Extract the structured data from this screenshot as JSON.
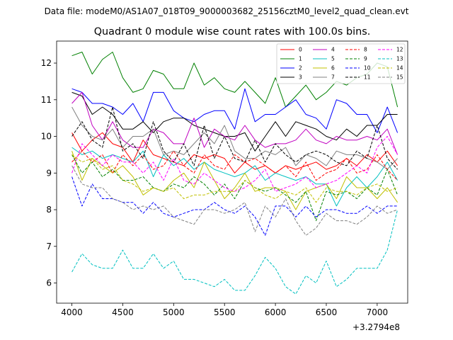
{
  "suptitle": "Data file: modeM0/AS1A07_018T09_9000003682_25156cztM0_level2_quad_clean.evt",
  "chart_data": {
    "type": "line",
    "title": "Quadrant 0 module wise count rates with 100.0s bins.",
    "xlabel": "",
    "ylabel": "",
    "x_offset_label": "+3.2794e8",
    "xlim": [
      3850,
      7300
    ],
    "ylim": [
      5.45,
      12.6
    ],
    "xticks": [
      4000,
      4500,
      5000,
      5500,
      6000,
      6500,
      7000
    ],
    "yticks": [
      6,
      7,
      8,
      9,
      10,
      11,
      12
    ],
    "x": [
      4000,
      4100,
      4200,
      4300,
      4400,
      4500,
      4600,
      4700,
      4800,
      4900,
      5000,
      5100,
      5200,
      5300,
      5400,
      5500,
      5600,
      5700,
      5800,
      5900,
      6000,
      6100,
      6200,
      6300,
      6400,
      6500,
      6600,
      6700,
      6800,
      6900,
      7000,
      7100,
      7200
    ],
    "legend_position": "upper-right",
    "legend_columns": 4,
    "series": [
      {
        "name": "0",
        "color": "#ff0000",
        "dash": "solid",
        "values": [
          10.1,
          9.6,
          9.9,
          10.1,
          9.8,
          9.7,
          9.3,
          9.9,
          9.5,
          9.4,
          9.3,
          9.2,
          9.5,
          9.4,
          9.5,
          9.4,
          9.0,
          9.3,
          9.1,
          9.2,
          9.0,
          9.2,
          9.1,
          9.2,
          9.3,
          9.1,
          9.2,
          9.4,
          9.2,
          9.5,
          9.3,
          9.6,
          9.2
        ]
      },
      {
        "name": "1",
        "color": "#008000",
        "dash": "solid",
        "values": [
          12.2,
          12.3,
          11.7,
          12.1,
          12.3,
          11.6,
          11.2,
          11.3,
          11.8,
          11.7,
          11.3,
          11.3,
          12.0,
          11.4,
          11.6,
          11.3,
          11.2,
          11.5,
          11.2,
          10.9,
          11.6,
          10.8,
          11.1,
          11.4,
          11.0,
          11.2,
          11.5,
          11.4,
          11.6,
          11.7,
          12.0,
          11.9,
          10.8
        ]
      },
      {
        "name": "2",
        "color": "#0000ff",
        "dash": "solid",
        "values": [
          11.3,
          11.2,
          10.9,
          10.9,
          10.8,
          10.6,
          10.9,
          10.4,
          11.2,
          11.2,
          10.7,
          10.5,
          10.4,
          10.6,
          10.7,
          10.7,
          10.2,
          11.3,
          10.4,
          10.6,
          10.6,
          10.8,
          11.0,
          10.6,
          10.5,
          10.2,
          11.0,
          10.9,
          10.6,
          10.6,
          10.1,
          10.8,
          10.1
        ]
      },
      {
        "name": "3",
        "color": "#000000",
        "dash": "solid",
        "values": [
          11.2,
          11.1,
          10.6,
          10.8,
          10.6,
          10.2,
          10.2,
          10.4,
          10.1,
          10.4,
          10.5,
          10.5,
          10.3,
          10.2,
          10.1,
          10.0,
          10.0,
          10.1,
          9.6,
          10.0,
          10.4,
          10.0,
          10.4,
          10.3,
          10.2,
          10.0,
          9.9,
          10.2,
          10.0,
          10.3,
          10.3,
          10.6,
          10.6
        ]
      },
      {
        "name": "4",
        "color": "#c000c0",
        "dash": "solid",
        "values": [
          10.9,
          11.2,
          10.3,
          9.9,
          10.4,
          9.9,
          9.7,
          9.7,
          10.2,
          10.1,
          9.8,
          9.8,
          10.5,
          9.7,
          10.2,
          10.0,
          9.9,
          10.3,
          9.9,
          9.7,
          9.8,
          9.8,
          9.9,
          10.2,
          9.9,
          9.8,
          10.0,
          9.9,
          9.9,
          10.0,
          9.9,
          10.2,
          9.5
        ]
      },
      {
        "name": "5",
        "color": "#00c0c0",
        "dash": "solid",
        "values": [
          9.7,
          9.5,
          9.6,
          9.4,
          9.5,
          9.4,
          9.3,
          9.6,
          8.9,
          9.5,
          9.2,
          9.4,
          9.1,
          9.3,
          9.1,
          9.0,
          8.9,
          9.0,
          9.2,
          8.8,
          9.0,
          8.9,
          8.8,
          8.9,
          8.7,
          8.7,
          8.1,
          8.6,
          8.9,
          8.6,
          8.9,
          9.3,
          8.8
        ]
      },
      {
        "name": "6",
        "color": "#c0c000",
        "dash": "solid",
        "values": [
          9.6,
          8.8,
          9.4,
          9.2,
          9.0,
          9.2,
          8.9,
          8.4,
          8.6,
          8.5,
          8.8,
          9.0,
          8.6,
          9.3,
          8.8,
          8.3,
          8.6,
          9.0,
          8.5,
          8.6,
          8.6,
          8.5,
          8.0,
          8.5,
          8.6,
          8.7,
          8.3,
          8.9,
          8.6,
          8.6,
          8.3,
          8.6,
          8.2
        ]
      },
      {
        "name": "7",
        "color": "#808080",
        "dash": "solid",
        "values": [
          10.8,
          10.3,
          10.0,
          9.9,
          10.2,
          9.7,
          10.0,
          10.0,
          10.2,
          9.5,
          9.6,
          9.5,
          9.8,
          10.1,
          9.8,
          10.3,
          9.6,
          9.4,
          9.4,
          9.6,
          9.5,
          9.7,
          9.2,
          9.5,
          9.4,
          9.2,
          9.6,
          9.5,
          9.5,
          9.4,
          9.3,
          9.1,
          9.4
        ]
      },
      {
        "name": "8",
        "color": "#ff0000",
        "dash": "dashed",
        "values": [
          9.3,
          9.6,
          9.3,
          9.5,
          9.0,
          9.5,
          9.2,
          9.5,
          9.1,
          9.2,
          9.6,
          9.2,
          9.0,
          9.5,
          9.2,
          9.1,
          9.5,
          9.3,
          9.4,
          9.2,
          9.0,
          9.2,
          8.9,
          9.3,
          8.8,
          9.0,
          9.1,
          9.4,
          9.0,
          9.1,
          9.5,
          9.1,
          8.8
        ]
      },
      {
        "name": "9",
        "color": "#008000",
        "dash": "dashed",
        "values": [
          9.5,
          9.0,
          9.3,
          8.9,
          9.1,
          8.8,
          8.8,
          8.9,
          8.6,
          8.5,
          8.7,
          8.6,
          8.9,
          8.7,
          8.4,
          8.7,
          8.3,
          8.8,
          8.6,
          8.5,
          8.6,
          8.4,
          8.2,
          8.5,
          7.7,
          8.5,
          8.4,
          8.5,
          8.3,
          8.6,
          8.4,
          9.1,
          8.4
        ]
      },
      {
        "name": "10",
        "color": "#0000ff",
        "dash": "dashed",
        "values": [
          8.9,
          8.1,
          8.7,
          8.3,
          8.3,
          8.2,
          8.2,
          7.9,
          8.2,
          7.9,
          7.8,
          7.9,
          8.0,
          8.0,
          8.2,
          8.0,
          7.9,
          8.1,
          7.8,
          7.3,
          8.1,
          8.1,
          7.8,
          8.1,
          7.8,
          8.0,
          8.0,
          7.9,
          7.9,
          8.1,
          7.9,
          8.1,
          8.1
        ]
      },
      {
        "name": "11",
        "color": "#000000",
        "dash": "dashed",
        "values": [
          10.0,
          10.4,
          9.9,
          9.7,
          10.8,
          9.6,
          9.8,
          9.4,
          10.4,
          9.6,
          9.3,
          9.8,
          9.2,
          10.3,
          9.4,
          10.0,
          9.4,
          9.3,
          9.9,
          9.3,
          9.8,
          9.5,
          9.3,
          9.5,
          9.6,
          9.5,
          9.3,
          9.2,
          9.6,
          9.4,
          10.3,
          9.4,
          9.1
        ]
      },
      {
        "name": "12",
        "color": "#ff00ff",
        "dash": "dashed",
        "values": [
          9.0,
          9.8,
          9.5,
          9.2,
          9.5,
          9.3,
          9.3,
          9.0,
          9.3,
          8.8,
          9.4,
          8.8,
          8.7,
          9.0,
          8.8,
          8.6,
          8.5,
          8.6,
          8.8,
          9.1,
          8.5,
          8.6,
          8.7,
          8.9,
          8.6,
          8.7,
          8.8,
          9.0,
          9.2,
          9.0,
          9.7,
          10.0,
          9.5
        ]
      },
      {
        "name": "13",
        "color": "#00c0c0",
        "dash": "dashed",
        "values": [
          6.3,
          6.8,
          6.5,
          6.4,
          6.4,
          6.9,
          6.4,
          6.4,
          6.8,
          6.4,
          6.6,
          6.1,
          6.1,
          6.0,
          5.9,
          6.1,
          5.8,
          5.8,
          6.2,
          6.7,
          6.4,
          5.9,
          5.7,
          6.2,
          6.0,
          6.6,
          5.9,
          6.1,
          6.4,
          6.4,
          6.4,
          6.9,
          8.0
        ]
      },
      {
        "name": "14",
        "color": "#c0c000",
        "dash": "dashed",
        "values": [
          9.5,
          9.3,
          9.4,
          9.1,
          9.2,
          8.8,
          8.7,
          8.5,
          8.6,
          8.5,
          8.6,
          8.3,
          8.4,
          8.4,
          8.5,
          8.5,
          8.5,
          8.8,
          8.6,
          8.4,
          8.3,
          8.5,
          8.4,
          8.6,
          8.2,
          8.6,
          8.5,
          8.5,
          8.4,
          8.6,
          8.7,
          8.5,
          8.6
        ]
      },
      {
        "name": "15",
        "color": "#808080",
        "dash": "dashed",
        "values": [
          9.2,
          8.7,
          8.6,
          8.6,
          8.3,
          8.2,
          8.0,
          8.1,
          8.0,
          8.1,
          7.8,
          7.7,
          7.6,
          8.0,
          8.0,
          7.9,
          8.0,
          8.2,
          7.4,
          8.1,
          7.8,
          8.3,
          7.7,
          7.3,
          7.5,
          7.9,
          7.7,
          7.7,
          7.6,
          7.8,
          8.1,
          7.9,
          8.0
        ]
      }
    ]
  }
}
